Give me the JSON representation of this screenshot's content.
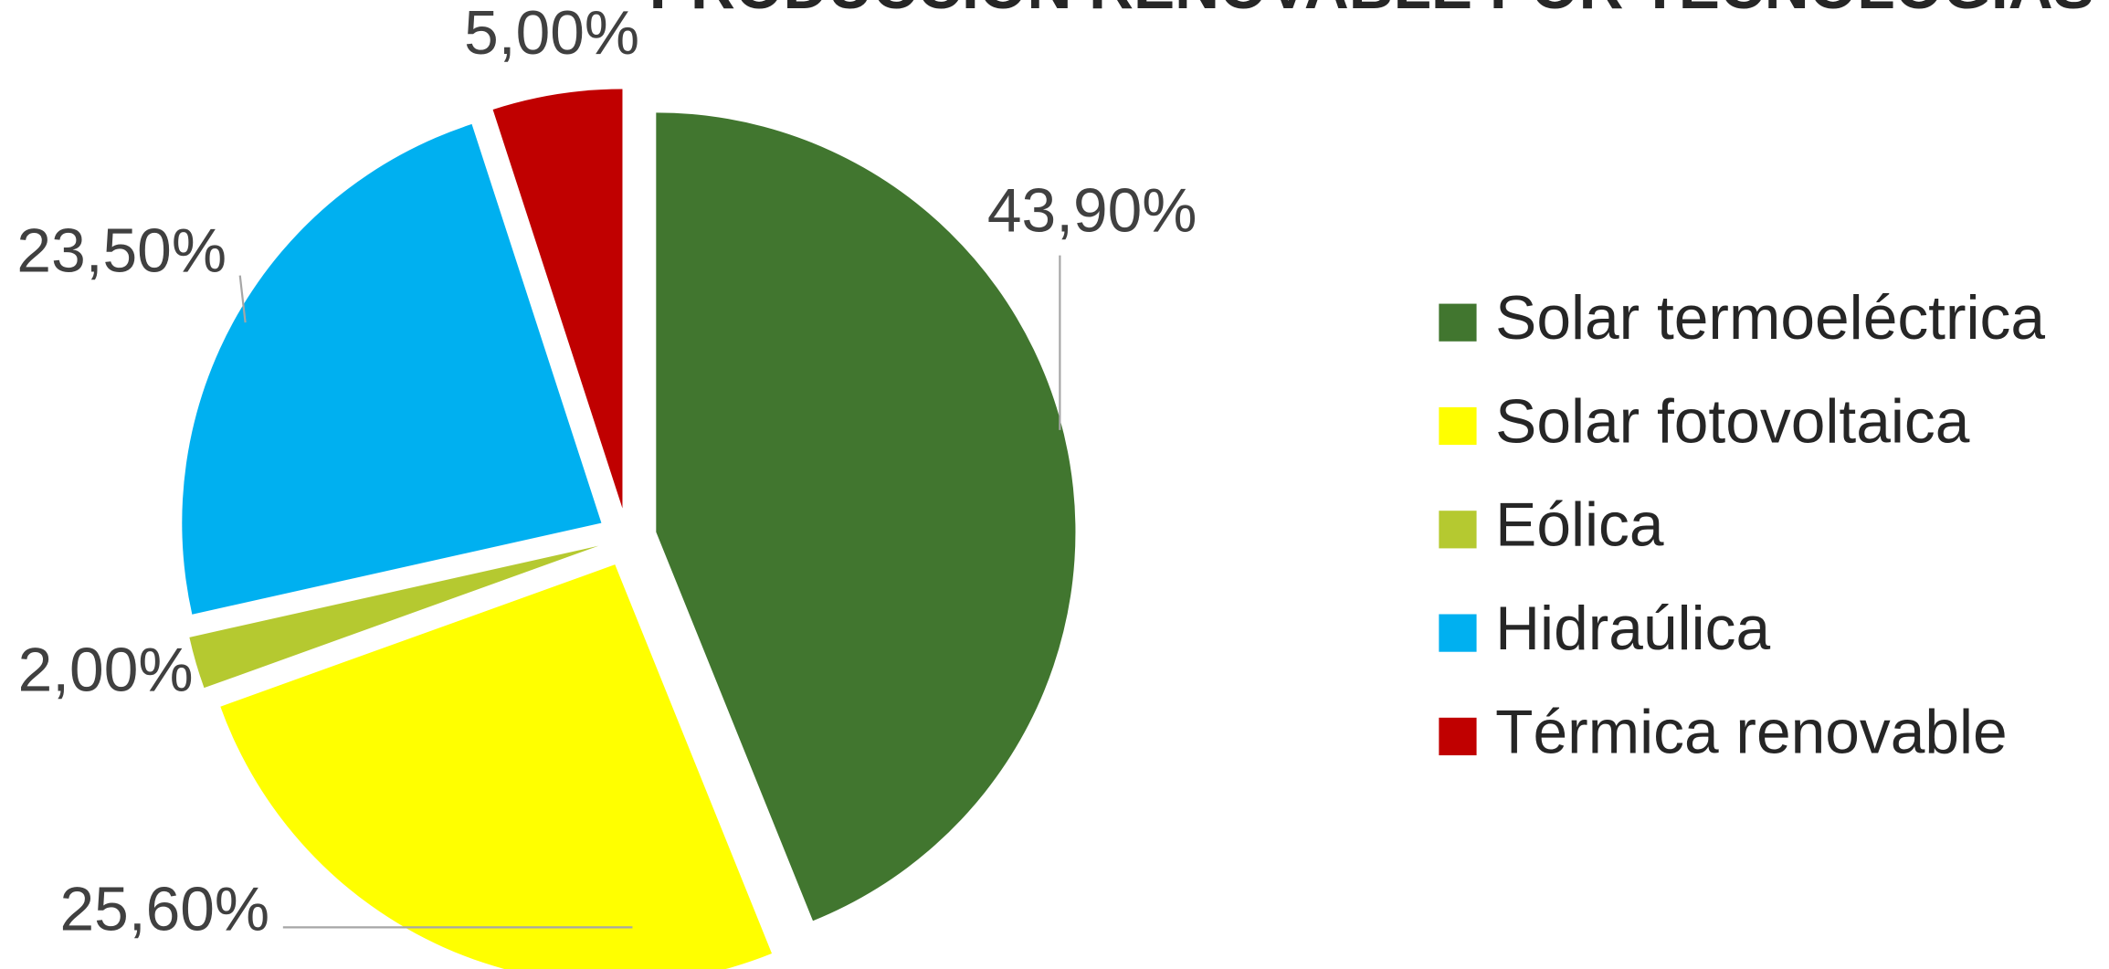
{
  "chart_data": {
    "type": "pie",
    "title": "PRODUCCIÓN RENOVABLE POR TECNOLOGÍAS",
    "categories": [
      "Solar termoeléctrica",
      "Solar fotovoltaica",
      "Eólica",
      "Hidraúlica",
      "Térmica renovable"
    ],
    "values": [
      43.9,
      25.6,
      2,
      23.5,
      5
    ],
    "value_labels": [
      "43,90%",
      "25,60%",
      "2,00%",
      "23,50%",
      "5,00%"
    ],
    "colors": [
      "#41762f",
      "#ffff00",
      "#b5c930",
      "#00b0f0",
      "#c00000"
    ],
    "legend": "right"
  }
}
